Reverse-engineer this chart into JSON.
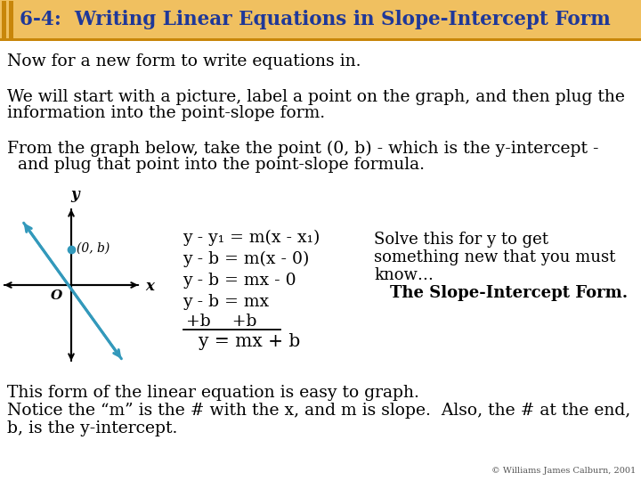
{
  "title": "6-4:  Writing Linear Equations in Slope-Intercept Form",
  "title_color": "#1F3899",
  "title_bg": "#F0C060",
  "header_bar_color": "#C8860A",
  "accent_bar_color": "#1F3899",
  "bg_color": "#FFFFFF",
  "line1": "Now for a new form to write equations in.",
  "line2a": "We will start with a picture, label a point on the graph, and then plug the",
  "line2b": "information into the point-slope form.",
  "line3a": "From the graph below, take the point (0, b) - which is the y-intercept -",
  "line3b": "  and plug that point into the point-slope formula.",
  "eq1": "y - y₁ = m(x - x₁)",
  "eq2": "y - b = m(x - 0)",
  "eq3": "y - b = mx - 0",
  "eq4": "y - b = mx",
  "eq5": "+b    +b",
  "eq6": "y = mx + b",
  "solve_text1": "Solve this for y to get",
  "solve_text2": "something new that you must",
  "solve_text3": "know…",
  "solve_text4": "The Slope-Intercept Form.",
  "bottom1": "This form of the linear equation is easy to graph.",
  "bottom2": "Notice the “m” is the # with the x, and m is slope.  Also, the # at the end,",
  "bottom3": "b, is the y-intercept.",
  "copyright": "© Williams James Calburn, 2001",
  "line_color": "#3399BB",
  "point_color": "#3399BB",
  "body_font_size": 13.5,
  "eq_font_size": 13.5,
  "title_fontsize": 15.5
}
